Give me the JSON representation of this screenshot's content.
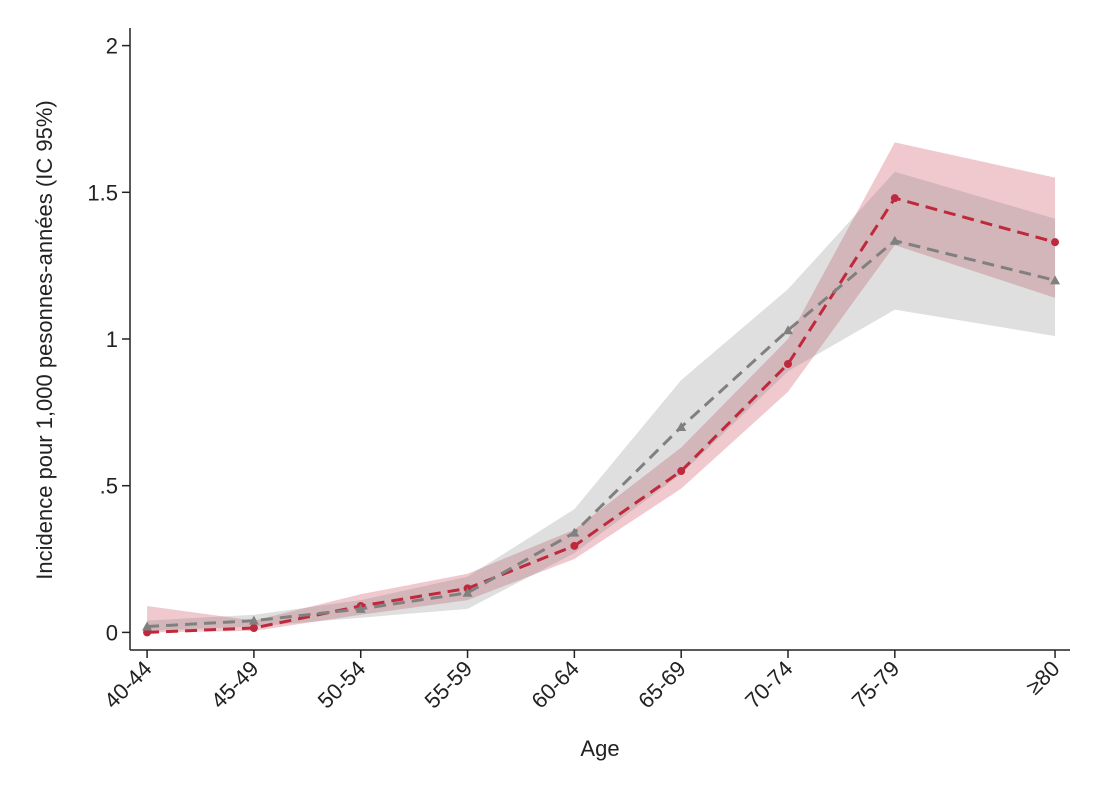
{
  "chart_data": {
    "type": "line",
    "y_label": "Incidence pour 1,000 pesonnes-années (IC 95%)",
    "x_label": "Age",
    "x": [
      42,
      47,
      52,
      57,
      62,
      67,
      72,
      77,
      84.5
    ],
    "xlim": [
      41.2,
      85.2
    ],
    "xticks": [
      {
        "value": 42,
        "label": "40-44"
      },
      {
        "value": 47,
        "label": "45-49"
      },
      {
        "value": 52,
        "label": "50-54"
      },
      {
        "value": 57,
        "label": "55-59"
      },
      {
        "value": 62,
        "label": "60-64"
      },
      {
        "value": 67,
        "label": "65-69"
      },
      {
        "value": 72,
        "label": "70-74"
      },
      {
        "value": 77,
        "label": "75-79"
      },
      {
        "value": 84.5,
        "label": "≥80"
      }
    ],
    "ylim": [
      -0.06,
      2.06
    ],
    "yticks": [
      0,
      {
        "value": 0.5,
        "label": ".5"
      },
      1,
      1.5,
      2
    ],
    "series": [
      {
        "color": "#c0283c",
        "marker": "circle",
        "values": [
          0,
          0.015,
          0.09,
          0.15,
          0.295,
          0.55,
          0.915,
          1.48,
          1.33
        ],
        "lower": [
          0,
          0.005,
          0.06,
          0.11,
          0.25,
          0.49,
          0.82,
          1.32,
          1.14
        ],
        "upper": [
          0.09,
          0.04,
          0.13,
          0.2,
          0.35,
          0.63,
          1.0,
          1.67,
          1.55
        ]
      },
      {
        "color": "#808080",
        "marker": "triangle",
        "values": [
          0.02,
          0.04,
          0.08,
          0.135,
          0.34,
          0.7,
          1.03,
          1.335,
          1.2
        ],
        "lower": [
          0.005,
          0.02,
          0.05,
          0.08,
          0.27,
          0.54,
          0.89,
          1.1,
          1.01
        ],
        "upper": [
          0.04,
          0.06,
          0.11,
          0.19,
          0.42,
          0.86,
          1.17,
          1.57,
          1.41
        ]
      }
    ]
  }
}
